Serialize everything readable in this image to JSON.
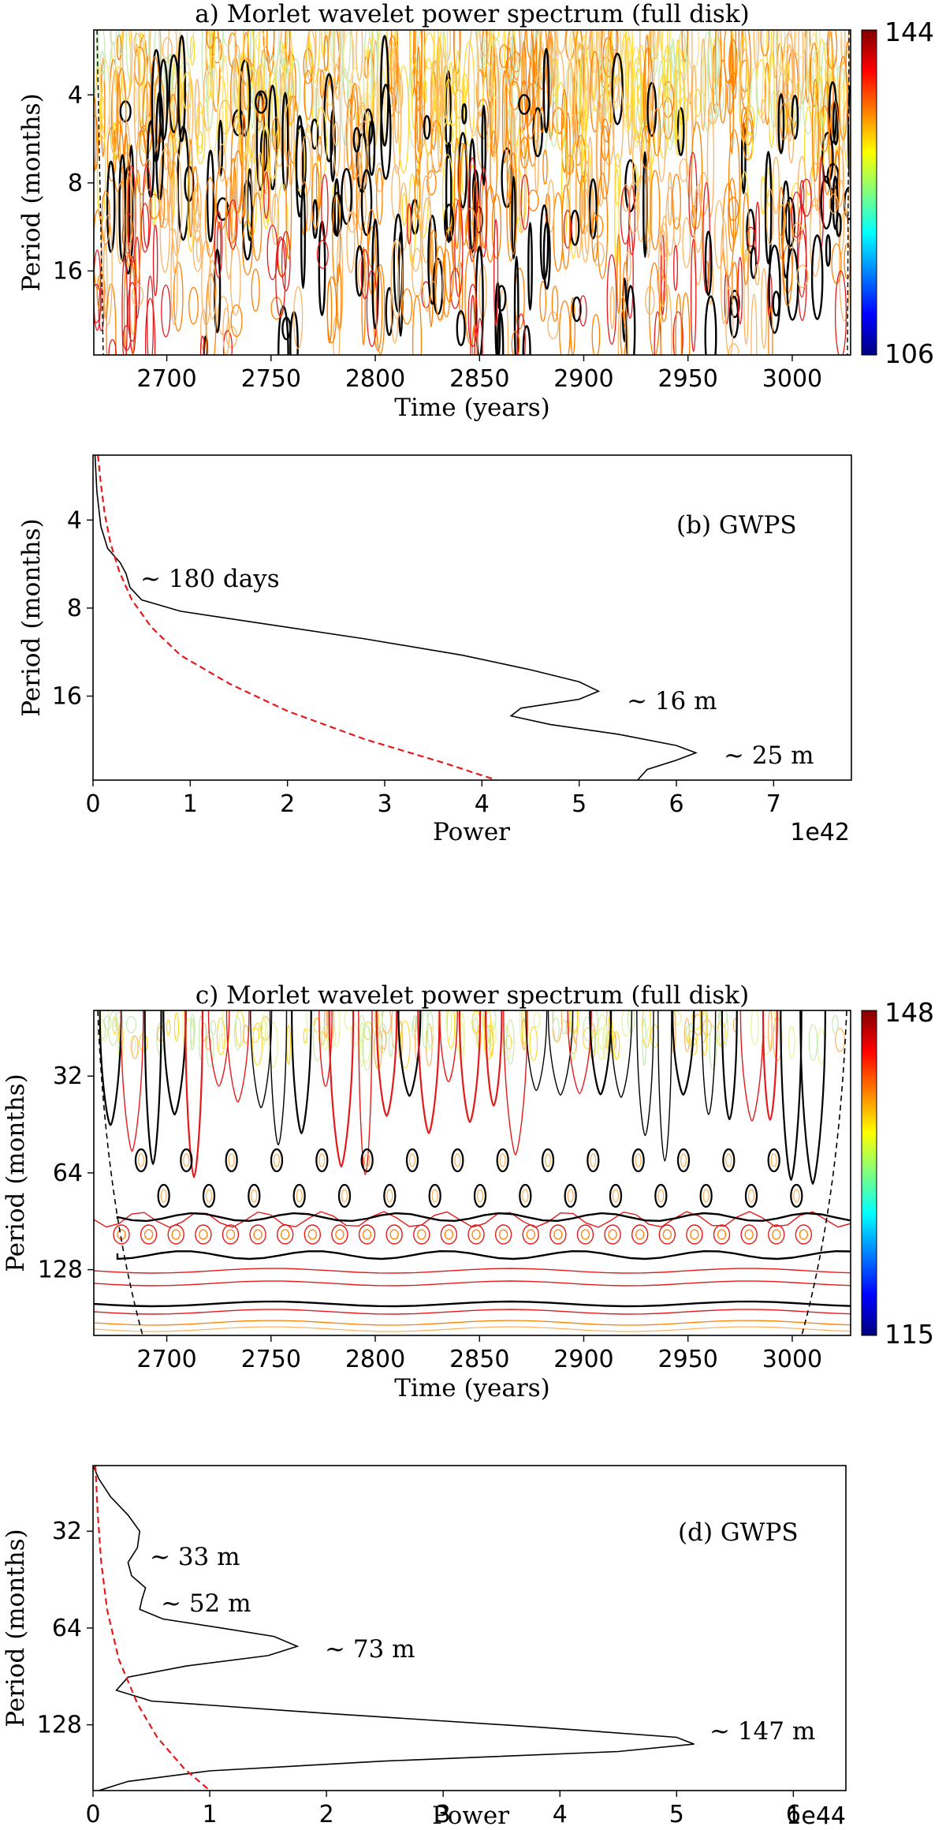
{
  "chart_data": [
    {
      "panel": "a",
      "type": "heatmap",
      "title": "a) Morlet wavelet power spectrum (full disk)",
      "xlabel": "Time (years)",
      "ylabel": "Period (months)",
      "xlim": [
        2665,
        3028
      ],
      "ylim": [
        2.4,
        31
      ],
      "yscale": "log2",
      "x_ticks": [
        2700,
        2750,
        2800,
        2850,
        2900,
        2950,
        3000
      ],
      "y_ticks": [
        4,
        8,
        16
      ],
      "colorbar": {
        "min": 106,
        "max": 144,
        "colormap": "jet"
      },
      "cone_of_influence": true,
      "contour_colors": [
        "#e31a1c",
        "#ff7f00",
        "#fdb462",
        "#ffd92f",
        "#c7e9b4",
        "#000000"
      ]
    },
    {
      "panel": "b",
      "type": "line",
      "title": "(b) GWPS",
      "xlabel": "Power",
      "ylabel": "Period (months)",
      "x_multiplier": "1e42",
      "xlim": [
        0,
        7.8
      ],
      "ylim": [
        2.4,
        31
      ],
      "yscale": "log2",
      "x_ticks": [
        0,
        1,
        2,
        3,
        4,
        5,
        6,
        7
      ],
      "y_ticks": [
        4,
        8,
        16
      ],
      "series": [
        {
          "style": "solid",
          "color": "#000000",
          "points": [
            [
              0.02,
              2.4
            ],
            [
              0.04,
              3.2
            ],
            [
              0.08,
              4.2
            ],
            [
              0.15,
              5.0
            ],
            [
              0.28,
              5.6
            ],
            [
              0.34,
              6.1
            ],
            [
              0.38,
              6.8
            ],
            [
              0.5,
              7.5
            ],
            [
              0.9,
              8.2
            ],
            [
              1.8,
              9.1
            ],
            [
              2.8,
              10.2
            ],
            [
              3.8,
              11.6
            ],
            [
              4.5,
              13.0
            ],
            [
              5.0,
              14.3
            ],
            [
              5.2,
              15.4
            ],
            [
              5.0,
              16.4
            ],
            [
              4.4,
              17.6
            ],
            [
              4.3,
              18.7
            ],
            [
              4.7,
              20.0
            ],
            [
              5.4,
              21.6
            ],
            [
              6.0,
              23.6
            ],
            [
              6.2,
              25.0
            ],
            [
              6.0,
              26.5
            ],
            [
              5.7,
              28.5
            ],
            [
              5.6,
              31.0
            ]
          ]
        },
        {
          "style": "dashed",
          "color": "#e31a1c",
          "points": [
            [
              0.05,
              2.4
            ],
            [
              0.08,
              3.0
            ],
            [
              0.12,
              3.8
            ],
            [
              0.18,
              4.8
            ],
            [
              0.27,
              6.0
            ],
            [
              0.4,
              7.5
            ],
            [
              0.6,
              9.3
            ],
            [
              0.9,
              11.6
            ],
            [
              1.4,
              14.5
            ],
            [
              2.0,
              18.0
            ],
            [
              2.8,
              22.5
            ],
            [
              3.6,
              27.0
            ],
            [
              4.15,
              31.0
            ]
          ]
        }
      ],
      "annotations": [
        "~ 180 days",
        "~ 16 m",
        "~ 25 m"
      ]
    },
    {
      "panel": "c",
      "type": "heatmap",
      "title": "c) Morlet wavelet power spectrum (full disk)",
      "xlabel": "Time (years)",
      "ylabel": "Period (months)",
      "xlim": [
        2665,
        3028
      ],
      "ylim": [
        20,
        205
      ],
      "yscale": "log2",
      "x_ticks": [
        2700,
        2750,
        2800,
        2850,
        2900,
        2950,
        3000
      ],
      "y_ticks": [
        32,
        64,
        128
      ],
      "colorbar": {
        "min": 115,
        "max": 148,
        "colormap": "jet"
      },
      "cone_of_influence": true
    },
    {
      "panel": "d",
      "type": "line",
      "title": "(d) GWPS",
      "xlabel": "Power",
      "ylabel": "Period (months)",
      "x_multiplier": "1e44",
      "xlim": [
        0,
        6.45
      ],
      "ylim": [
        20,
        205
      ],
      "yscale": "log2",
      "x_ticks": [
        0,
        1,
        2,
        3,
        4,
        5,
        6
      ],
      "y_ticks": [
        32,
        64,
        128
      ],
      "series": [
        {
          "style": "solid",
          "color": "#000000",
          "points": [
            [
              0.0,
              20
            ],
            [
              0.05,
              22
            ],
            [
              0.15,
              25
            ],
            [
              0.3,
              28.5
            ],
            [
              0.4,
              32
            ],
            [
              0.38,
              36
            ],
            [
              0.3,
              40
            ],
            [
              0.33,
              44
            ],
            [
              0.45,
              48
            ],
            [
              0.42,
              52
            ],
            [
              0.4,
              56
            ],
            [
              0.6,
              60
            ],
            [
              1.1,
              64
            ],
            [
              1.55,
              68
            ],
            [
              1.75,
              73
            ],
            [
              1.5,
              78
            ],
            [
              0.8,
              84
            ],
            [
              0.3,
              91
            ],
            [
              0.2,
              100
            ],
            [
              0.5,
              108
            ],
            [
              2.0,
              118
            ],
            [
              3.8,
              130
            ],
            [
              5.0,
              140
            ],
            [
              5.15,
              147
            ],
            [
              4.5,
              155
            ],
            [
              2.5,
              166
            ],
            [
              1.0,
              178
            ],
            [
              0.3,
              192
            ],
            [
              0.05,
              205
            ]
          ]
        },
        {
          "style": "dashed",
          "color": "#e31a1c",
          "points": [
            [
              0.02,
              20
            ],
            [
              0.04,
              28
            ],
            [
              0.07,
              40
            ],
            [
              0.12,
              56
            ],
            [
              0.22,
              80
            ],
            [
              0.38,
              110
            ],
            [
              0.55,
              140
            ],
            [
              0.78,
              175
            ],
            [
              1.0,
              205
            ]
          ]
        }
      ],
      "annotations": [
        "~ 33 m",
        "~ 52 m",
        "~ 73 m",
        "~ 147 m"
      ]
    }
  ]
}
